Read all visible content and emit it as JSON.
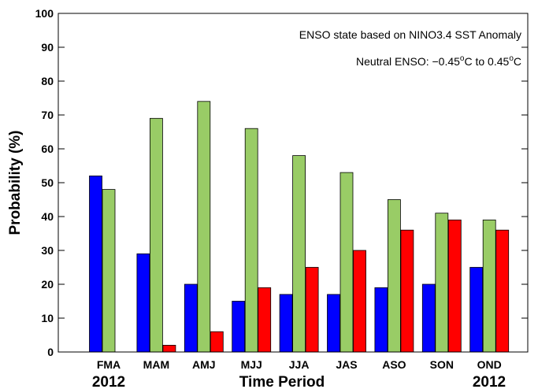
{
  "chart_data": {
    "type": "bar",
    "categories": [
      "FMA",
      "MAM",
      "AMJ",
      "MJJ",
      "JJA",
      "JAS",
      "ASO",
      "SON",
      "OND"
    ],
    "series": [
      {
        "color": "#0000ff",
        "values": [
          52,
          29,
          20,
          15,
          17,
          17,
          19,
          20,
          25
        ]
      },
      {
        "color": "#99cc66",
        "values": [
          48,
          69,
          74,
          66,
          58,
          53,
          45,
          41,
          39
        ]
      },
      {
        "color": "#ff0000",
        "values": [
          0,
          2,
          6,
          19,
          25,
          30,
          36,
          39,
          36
        ]
      }
    ],
    "title": "",
    "xlabel": "Time Period",
    "ylabel": "Probability (%)",
    "ylim": [
      0,
      100
    ],
    "yticks": [
      0,
      10,
      20,
      30,
      40,
      50,
      60,
      70,
      80,
      90,
      100
    ],
    "grid": false,
    "legend": "none",
    "year_left": "2012",
    "year_right": "2012",
    "annotations": {
      "line1": "ENSO state based on NINO3.4 SST Anomaly",
      "line2_prefix": "Neutral ENSO: −0.45",
      "line2_deg1": "o",
      "line2_mid": "C to 0.45",
      "line2_deg2": "o",
      "line2_suffix": "C"
    }
  }
}
